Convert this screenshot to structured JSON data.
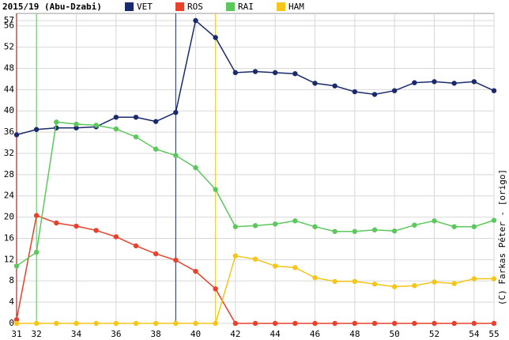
{
  "chart_data": {
    "type": "line",
    "title": "2015/19 (Abu-Dzabi)",
    "x": [
      31,
      32,
      33,
      34,
      35,
      36,
      37,
      38,
      39,
      40,
      41,
      42,
      43,
      44,
      45,
      46,
      47,
      48,
      49,
      50,
      51,
      52,
      53,
      54,
      55
    ],
    "series": [
      {
        "name": "VET",
        "color": "#1a2a6c",
        "values": [
          35.5,
          36.5,
          36.8,
          36.8,
          37,
          38.8,
          38.8,
          38,
          39.7,
          57,
          53.8,
          47.2,
          47.4,
          47.2,
          47,
          45.2,
          44.7,
          43.6,
          43.1,
          43.8,
          45.3,
          45.5,
          45.2,
          45.5,
          43.8
        ]
      },
      {
        "name": "ROS",
        "color": "#e8412c",
        "values": [
          0.7,
          20.3,
          18.9,
          18.3,
          17.5,
          16.3,
          14.6,
          13.1,
          11.9,
          9.8,
          6.5,
          0,
          0,
          0,
          0,
          0,
          0,
          0,
          0,
          0,
          0,
          0,
          0,
          0,
          0
        ]
      },
      {
        "name": "RAI",
        "color": "#5cc85c",
        "values": [
          10.8,
          13.4,
          37.9,
          37.5,
          37.3,
          36.6,
          35.1,
          32.8,
          31.6,
          29.3,
          25.2,
          18.2,
          18.4,
          18.7,
          19.3,
          18.2,
          17.3,
          17.3,
          17.6,
          17.4,
          18.5,
          19.3,
          18.2,
          18.2,
          19.4
        ]
      },
      {
        "name": "HAM",
        "color": "#f5c518",
        "values": [
          0,
          0,
          0,
          0,
          0,
          0,
          0,
          0,
          0,
          0,
          0,
          12.7,
          12.1,
          10.8,
          10.5,
          8.6,
          7.9,
          7.9,
          7.4,
          6.9,
          7.1,
          7.8,
          7.5,
          8.4,
          8.4
        ]
      }
    ],
    "markers": [
      {
        "x": 31,
        "color": "#8b0000"
      },
      {
        "x": 32,
        "color": "#5cc85c"
      },
      {
        "x": 39,
        "color": "#1a2a6c"
      },
      {
        "x": 41,
        "color": "#f5c518"
      }
    ],
    "xlim": [
      31,
      55
    ],
    "xticks": [
      31,
      32,
      34,
      36,
      38,
      40,
      42,
      44,
      46,
      48,
      50,
      52,
      54,
      55
    ],
    "ylim": [
      0,
      57
    ],
    "yticks": [
      0,
      4,
      8,
      12,
      16,
      20,
      24,
      28,
      32,
      36,
      40,
      44,
      48,
      52,
      56,
      57
    ],
    "grid": true,
    "credit": "(C) Farkas Péter - [origo]"
  }
}
